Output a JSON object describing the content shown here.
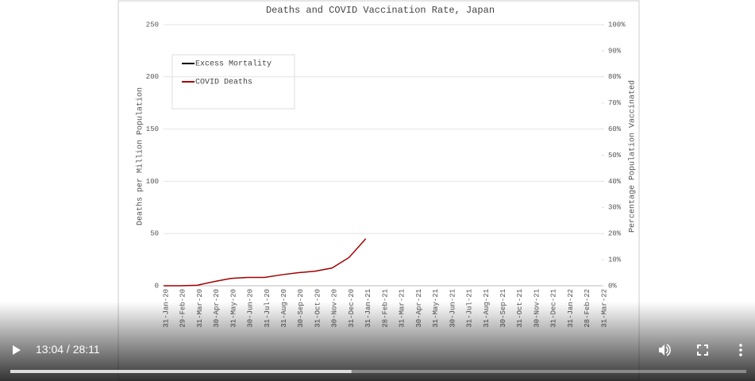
{
  "chart_data": {
    "type": "line",
    "title": "Deaths and COVID Vaccination Rate, Japan",
    "y_label": "Deaths per Million Population",
    "y2_label": "Percentage Population Vaccinated",
    "categories": [
      "31-Jan-20",
      "29-Feb-20",
      "31-Mar-20",
      "30-Apr-20",
      "31-May-20",
      "30-Jun-20",
      "31-Jul-20",
      "31-Aug-20",
      "30-Sep-20",
      "31-Oct-20",
      "30-Nov-20",
      "31-Dec-20",
      "31-Jan-21",
      "28-Feb-21",
      "31-Mar-21",
      "30-Apr-21",
      "31-May-21",
      "30-Jun-21",
      "31-Jul-21",
      "31-Aug-21",
      "30-Sep-21",
      "31-Oct-21",
      "30-Nov-21",
      "31-Dec-21",
      "31-Jan-22",
      "28-Feb-22",
      "31-Mar-22"
    ],
    "series": [
      {
        "name": "Excess Mortality",
        "color": "#000000",
        "values": [
          null,
          null,
          null,
          null,
          null,
          null,
          null,
          null,
          null,
          null,
          null,
          null,
          null,
          null,
          null,
          null,
          null,
          null,
          null,
          null,
          null,
          null,
          null,
          null,
          null,
          null,
          null
        ]
      },
      {
        "name": "COVID Deaths",
        "color": "#a00000",
        "values": [
          0,
          0,
          0.5,
          4,
          7,
          8,
          8,
          10.5,
          12.5,
          14,
          17,
          27,
          45,
          null,
          null,
          null,
          null,
          null,
          null,
          null,
          null,
          null,
          null,
          null,
          null,
          null,
          null
        ]
      }
    ],
    "ylim": [
      0,
      250
    ],
    "yticks": [
      0,
      50,
      100,
      150,
      200,
      250
    ],
    "y2lim": [
      0,
      100
    ],
    "y2ticks": [
      {
        "value": 0,
        "label": "0%"
      },
      {
        "value": 10,
        "label": "10%"
      },
      {
        "value": 20,
        "label": "20%"
      },
      {
        "value": 30,
        "label": "30%"
      },
      {
        "value": 40,
        "label": "40%"
      },
      {
        "value": 50,
        "label": "50%"
      },
      {
        "value": 60,
        "label": "60%"
      },
      {
        "value": 70,
        "label": "70%"
      },
      {
        "value": 80,
        "label": "80%"
      },
      {
        "value": 90,
        "label": "90%"
      },
      {
        "value": 100,
        "label": "100%"
      }
    ],
    "grid": true,
    "legend": "upper left"
  },
  "player": {
    "current_time": "13:04",
    "duration": "28:11"
  }
}
